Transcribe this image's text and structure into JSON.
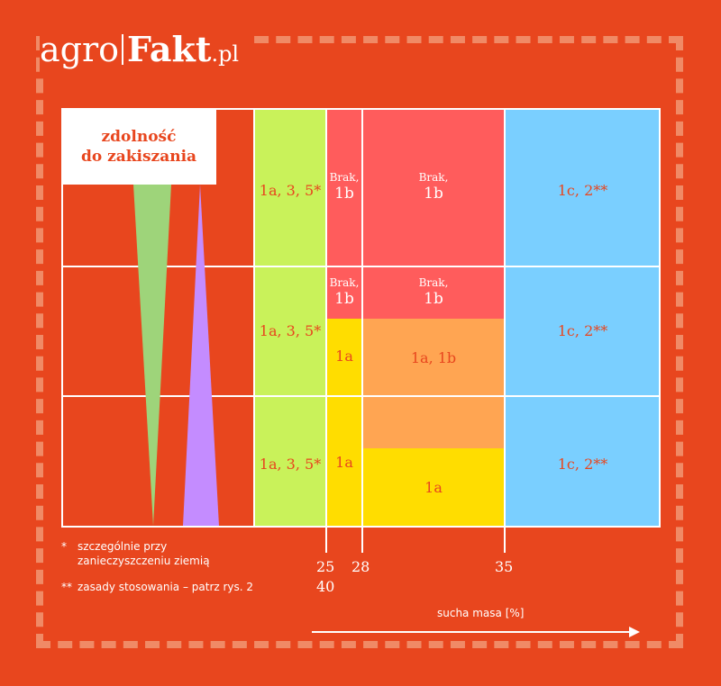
{
  "logo": {
    "part1": "agro",
    "part2": "Fakt",
    "part3": ".pl"
  },
  "legend_box": {
    "line1": "zdolność",
    "line2": "do zakiszania"
  },
  "cells": {
    "green_r1": "1a, 3, 5*",
    "green_r2": "1a, 3, 5*",
    "green_r3": "1a, 3, 5*",
    "red_narrow_r1_a": "Brak,",
    "red_narrow_r1_b": "1b",
    "red_wide_r1_a": "Brak,",
    "red_wide_r1_b": "1b",
    "blue_r1": "1c, 2**",
    "red_narrow_r2_a": "Brak,",
    "red_narrow_r2_b": "1b",
    "red_wide_r2_a": "Brak,",
    "red_wide_r2_b": "1b",
    "yellow_narrow_r2": "1a",
    "orange_r2": "1a, 1b",
    "blue_r2": "1c, 2**",
    "yellow_narrow_r3": "1a",
    "yellow_wide_r3": "1a",
    "blue_r3": "1c, 2**"
  },
  "ticks": {
    "t25": "25",
    "t28": "28",
    "t35": "35",
    "t40": "40"
  },
  "notes": {
    "n1_mark": "*",
    "n1_text1": "szczególnie przy",
    "n1_text2": "zanieczyszczeniu ziemią",
    "n2_mark": "**",
    "n2_text": "zasady stosowania – patrz rys. 2"
  },
  "xaxis_label": "sucha masa [%]",
  "colors": {
    "background": "#E8461E",
    "green": "#C9F25A",
    "red": "#FF5C5C",
    "yellow": "#FFDD00",
    "orange": "#FFA552",
    "blue": "#7ACFFF",
    "tri_green": "#9ED47A",
    "tri_purple": "#C48CFF"
  }
}
